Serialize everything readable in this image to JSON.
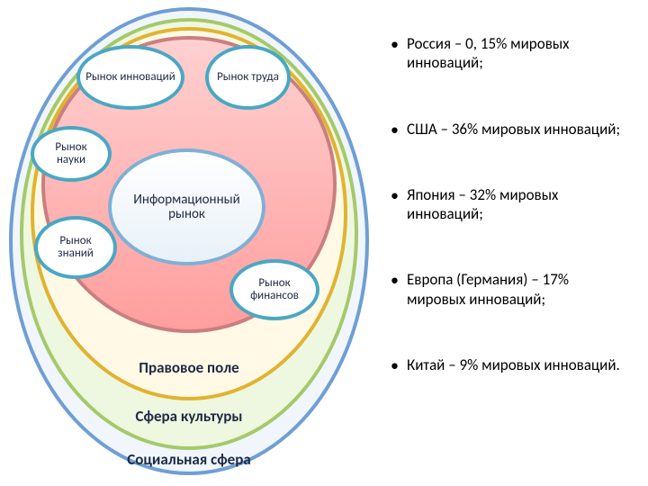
{
  "diagram": {
    "outerEllipses": {
      "social": {
        "label": "Социальная сфера",
        "borderColor": "#6f9ed4",
        "fillColor": "#f0f6fc",
        "labelFontSize": 17,
        "labelColor": "#1f2a44"
      },
      "culture": {
        "label": "Сфера культуры",
        "borderColor": "#a5c96a",
        "fillColor": "#eef7e0",
        "labelFontSize": 17,
        "labelColor": "#1f2a44"
      },
      "legal": {
        "label": "Правовое поле",
        "borderColor": "#e0b330",
        "fillColor": "#fff9e6",
        "labelFontSize": 17,
        "labelColor": "#1f2a44"
      },
      "core": {
        "borderColor": "#c97f7f",
        "fillTop": "#ffd0d0",
        "fillBottom": "#ff9e9e"
      }
    },
    "centerNode": {
      "label": "Информационный рынок",
      "fontSize": 15,
      "textColor": "#1f2a44",
      "borderColor": "#7fb0d6",
      "fillTop": "#ffffff",
      "fillBottom": "#e8f1f8"
    },
    "smallNodes": {
      "innovations": {
        "label": "Рынок инноваций",
        "fontSize": 13
      },
      "labor": {
        "label": "Рынок труда",
        "fontSize": 13
      },
      "science": {
        "label": "Рынок науки",
        "fontSize": 13
      },
      "knowledge": {
        "label": "Рынок знаний",
        "fontSize": 13
      },
      "finance": {
        "label": "Рынок финансов",
        "fontSize": 13
      },
      "style": {
        "borderColor": "#4aa7c4",
        "fillColor": "#ffffff",
        "textColor": "#1f2a44"
      }
    }
  },
  "facts": {
    "fontSize": 17,
    "textColor": "#000000",
    "items": [
      "Россия – 0, 15% мировых инноваций;",
      "США – 36% мировых инноваций;",
      "Япония – 32% мировых инноваций;",
      "Европа (Германия) – 17% мировых инноваций;",
      "Китай – 9% мировых инноваций."
    ]
  }
}
